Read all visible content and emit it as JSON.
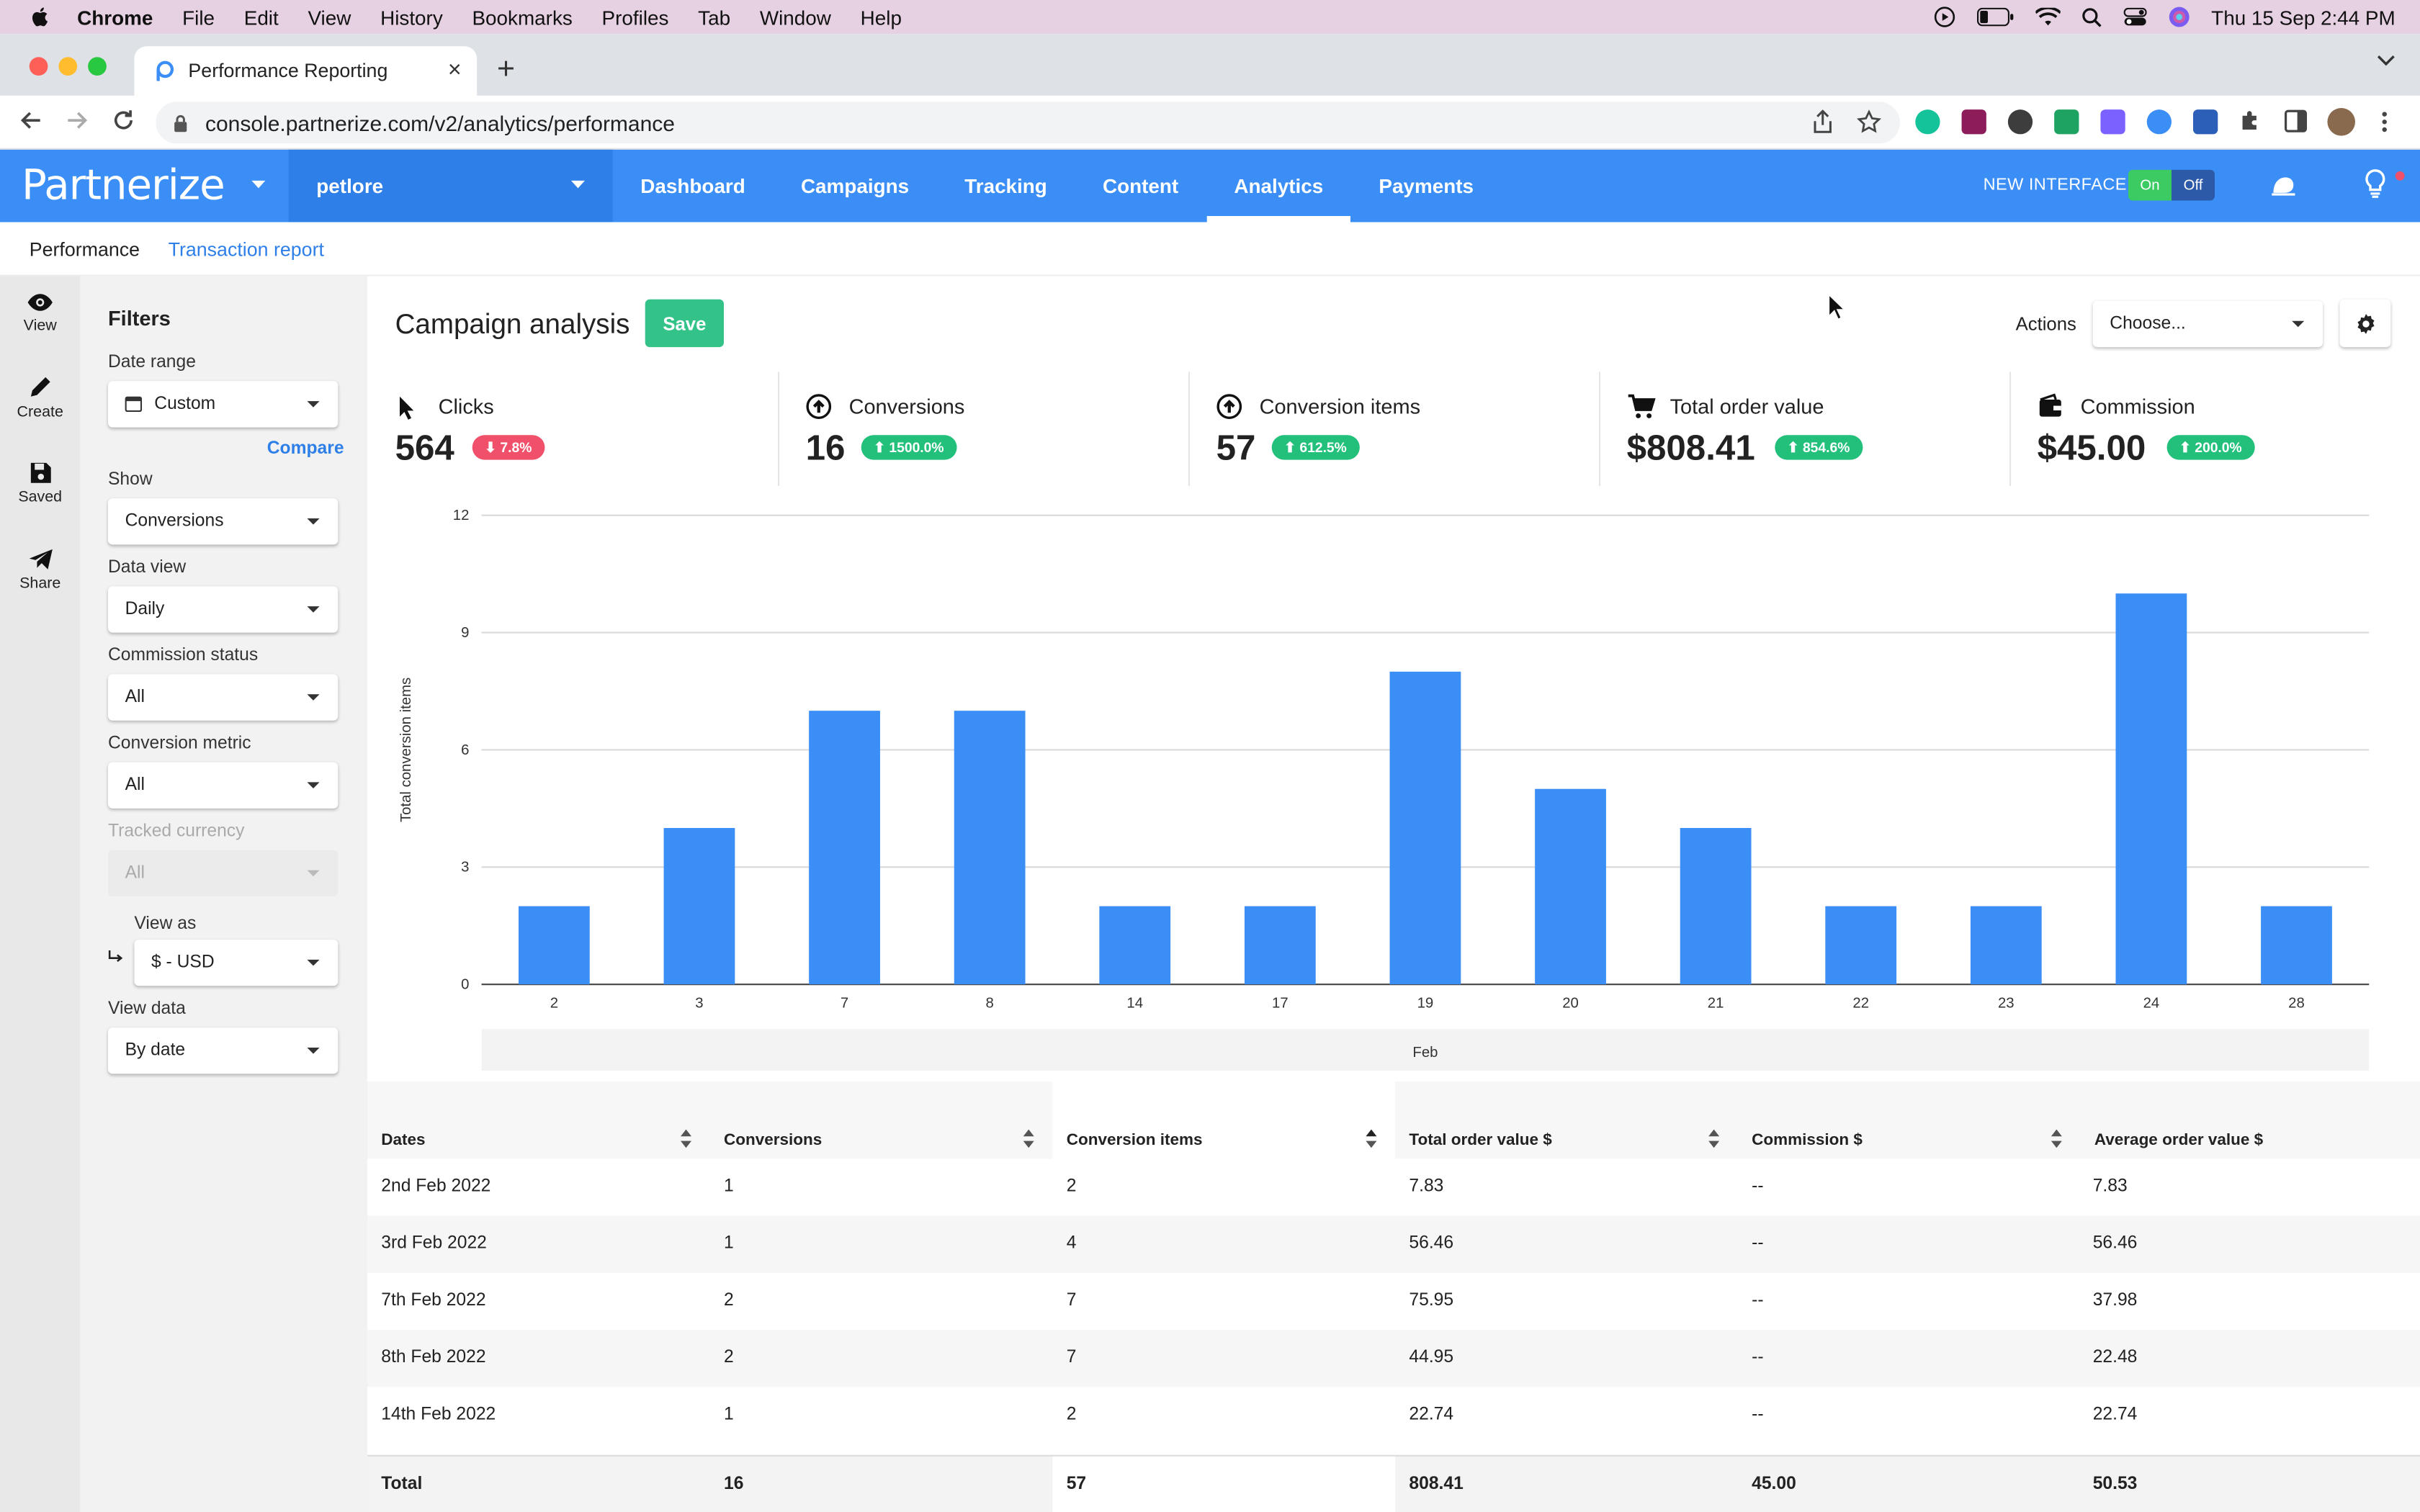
{
  "menubar": {
    "items": [
      "Chrome",
      "File",
      "Edit",
      "View",
      "History",
      "Bookmarks",
      "Profiles",
      "Tab",
      "Window",
      "Help"
    ],
    "clock": "Thu 15 Sep  2:44 PM"
  },
  "browser": {
    "tab_title": "Performance Reporting",
    "url": "console.partnerize.com/v2/analytics/performance"
  },
  "app": {
    "logo": "Partnerize",
    "account": "petlore",
    "nav": [
      "Dashboard",
      "Campaigns",
      "Tracking",
      "Content",
      "Analytics",
      "Payments"
    ],
    "active_nav": "Analytics",
    "new_interface_label": "NEW INTERFACE",
    "toggle_on": "On",
    "toggle_off": "Off",
    "accent": "#3a8ef6"
  },
  "subnav": {
    "items": [
      "Performance",
      "Transaction report"
    ]
  },
  "rail": {
    "items": [
      "View",
      "Create",
      "Saved",
      "Share"
    ]
  },
  "filters": {
    "title": "Filters",
    "date_range_label": "Date range",
    "date_range_value": "Custom",
    "compare": "Compare",
    "show_label": "Show",
    "show_value": "Conversions",
    "data_view_label": "Data view",
    "data_view_value": "Daily",
    "commission_status_label": "Commission status",
    "commission_status_value": "All",
    "conversion_metric_label": "Conversion metric",
    "conversion_metric_value": "All",
    "tracked_currency_label": "Tracked currency",
    "tracked_currency_value": "All",
    "view_as_label": "View as",
    "view_as_value": "$ - USD",
    "view_data_label": "View data",
    "view_data_value": "By date"
  },
  "main": {
    "title": "Campaign analysis",
    "save": "Save",
    "actions_label": "Actions",
    "actions_value": "Choose..."
  },
  "kpis": [
    {
      "name": "Clicks",
      "value": "564",
      "change": "7.8%",
      "direction": "down",
      "icon": "cursor-icon"
    },
    {
      "name": "Conversions",
      "value": "16",
      "change": "1500.0%",
      "direction": "up",
      "icon": "circle-arrow-icon"
    },
    {
      "name": "Conversion items",
      "value": "57",
      "change": "612.5%",
      "direction": "up",
      "icon": "circle-arrow-icon"
    },
    {
      "name": "Total order value",
      "value": "$808.41",
      "change": "854.6%",
      "direction": "up",
      "icon": "cart-icon"
    },
    {
      "name": "Commission",
      "value": "$45.00",
      "change": "200.0%",
      "direction": "up",
      "icon": "wallet-icon"
    }
  ],
  "chart_data": {
    "type": "bar",
    "categories": [
      "2",
      "3",
      "7",
      "8",
      "14",
      "17",
      "19",
      "20",
      "21",
      "22",
      "23",
      "24",
      "28"
    ],
    "values": [
      2,
      4,
      7,
      7,
      2,
      2,
      8,
      5,
      4,
      2,
      2,
      10,
      2
    ],
    "ylabel": "Total conversion items",
    "xgroup_label": "Feb",
    "ylim": [
      0,
      12
    ],
    "yticks": [
      0,
      3,
      6,
      9,
      12
    ],
    "grid": true,
    "bar_color": "#3a8ef6"
  },
  "table": {
    "columns": [
      "Dates",
      "Conversions",
      "Conversion items",
      "Total order value $",
      "Commission $",
      "Average order value $"
    ],
    "rows": [
      [
        "2nd Feb 2022",
        "1",
        "2",
        "7.83",
        "--",
        "7.83"
      ],
      [
        "3rd Feb 2022",
        "1",
        "4",
        "56.46",
        "--",
        "56.46"
      ],
      [
        "7th Feb 2022",
        "2",
        "7",
        "75.95",
        "--",
        "37.98"
      ],
      [
        "8th Feb 2022",
        "2",
        "7",
        "44.95",
        "--",
        "22.48"
      ],
      [
        "14th Feb 2022",
        "1",
        "2",
        "22.74",
        "--",
        "22.74"
      ]
    ],
    "total": [
      "Total",
      "16",
      "57",
      "808.41",
      "45.00",
      "50.53"
    ]
  }
}
